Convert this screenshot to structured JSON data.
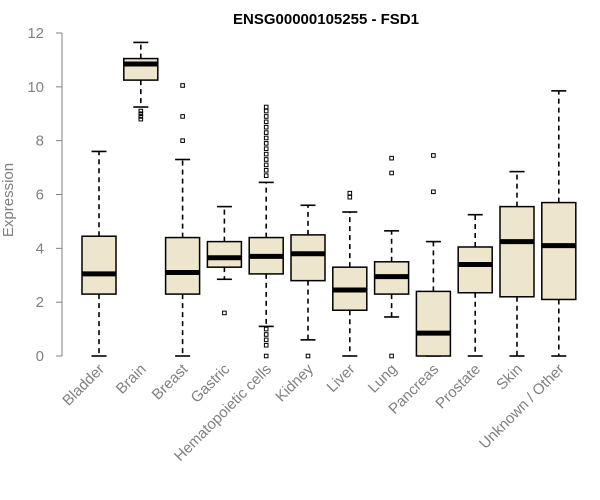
{
  "chart_data": {
    "type": "boxplot",
    "title": "ENSG00000105255 - FSD1",
    "xlabel": "",
    "ylabel": "Expression",
    "ylim": [
      0,
      12
    ],
    "yticks": [
      0,
      2,
      4,
      6,
      8,
      10,
      12
    ],
    "categories": [
      "Bladder",
      "Brain",
      "Breast",
      "Gastric",
      "Hematopoietic cells",
      "Kidney",
      "Liver",
      "Lung",
      "Pancreas",
      "Prostate",
      "Skin",
      "Unknown / Other"
    ],
    "boxes": [
      {
        "name": "Bladder",
        "min": 0,
        "q1": 2.3,
        "median": 3.05,
        "q3": 4.45,
        "max": 7.6,
        "outliers": []
      },
      {
        "name": "Brain",
        "min": 9.25,
        "q1": 10.25,
        "median": 10.85,
        "q3": 11.05,
        "max": 11.65,
        "outliers": [
          8.8,
          8.9,
          9.0,
          9.1
        ]
      },
      {
        "name": "Breast",
        "min": 0,
        "q1": 2.3,
        "median": 3.1,
        "q3": 4.4,
        "max": 7.3,
        "outliers": [
          8.0,
          8.9,
          10.05
        ]
      },
      {
        "name": "Gastric",
        "min": 2.85,
        "q1": 3.3,
        "median": 3.65,
        "q3": 4.25,
        "max": 5.55,
        "outliers": [
          1.6
        ]
      },
      {
        "name": "Hematopoietic cells",
        "min": 1.1,
        "q1": 3.05,
        "median": 3.7,
        "q3": 4.4,
        "max": 6.45,
        "outliers": [
          0,
          0.4,
          0.6,
          0.8,
          1.0,
          6.7,
          6.9,
          7.1,
          7.3,
          7.5,
          7.7,
          7.9,
          8.1,
          8.3,
          8.5,
          8.7,
          8.9,
          9.1,
          9.25
        ]
      },
      {
        "name": "Kidney",
        "min": 0.6,
        "q1": 2.8,
        "median": 3.8,
        "q3": 4.5,
        "max": 5.6,
        "outliers": [
          0
        ]
      },
      {
        "name": "Liver",
        "min": 0,
        "q1": 1.7,
        "median": 2.45,
        "q3": 3.3,
        "max": 5.35,
        "outliers": [
          5.9,
          6.05
        ]
      },
      {
        "name": "Lung",
        "min": 1.45,
        "q1": 2.3,
        "median": 2.95,
        "q3": 3.5,
        "max": 4.65,
        "outliers": [
          0,
          6.8,
          7.35
        ]
      },
      {
        "name": "Pancreas",
        "min": 0,
        "q1": 0,
        "median": 0.85,
        "q3": 2.4,
        "max": 4.25,
        "outliers": [
          6.1,
          7.45
        ]
      },
      {
        "name": "Prostate",
        "min": 0,
        "q1": 2.35,
        "median": 3.4,
        "q3": 4.05,
        "max": 5.25,
        "outliers": []
      },
      {
        "name": "Skin",
        "min": 0,
        "q1": 2.2,
        "median": 4.25,
        "q3": 5.55,
        "max": 6.85,
        "outliers": []
      },
      {
        "name": "Unknown / Other",
        "min": 0,
        "q1": 2.1,
        "median": 4.1,
        "q3": 5.7,
        "max": 9.85,
        "outliers": []
      }
    ],
    "colors": {
      "box_fill": "#ede6cc",
      "stroke": "#000000",
      "axis": "#808080",
      "tick_text": "#808080"
    }
  }
}
